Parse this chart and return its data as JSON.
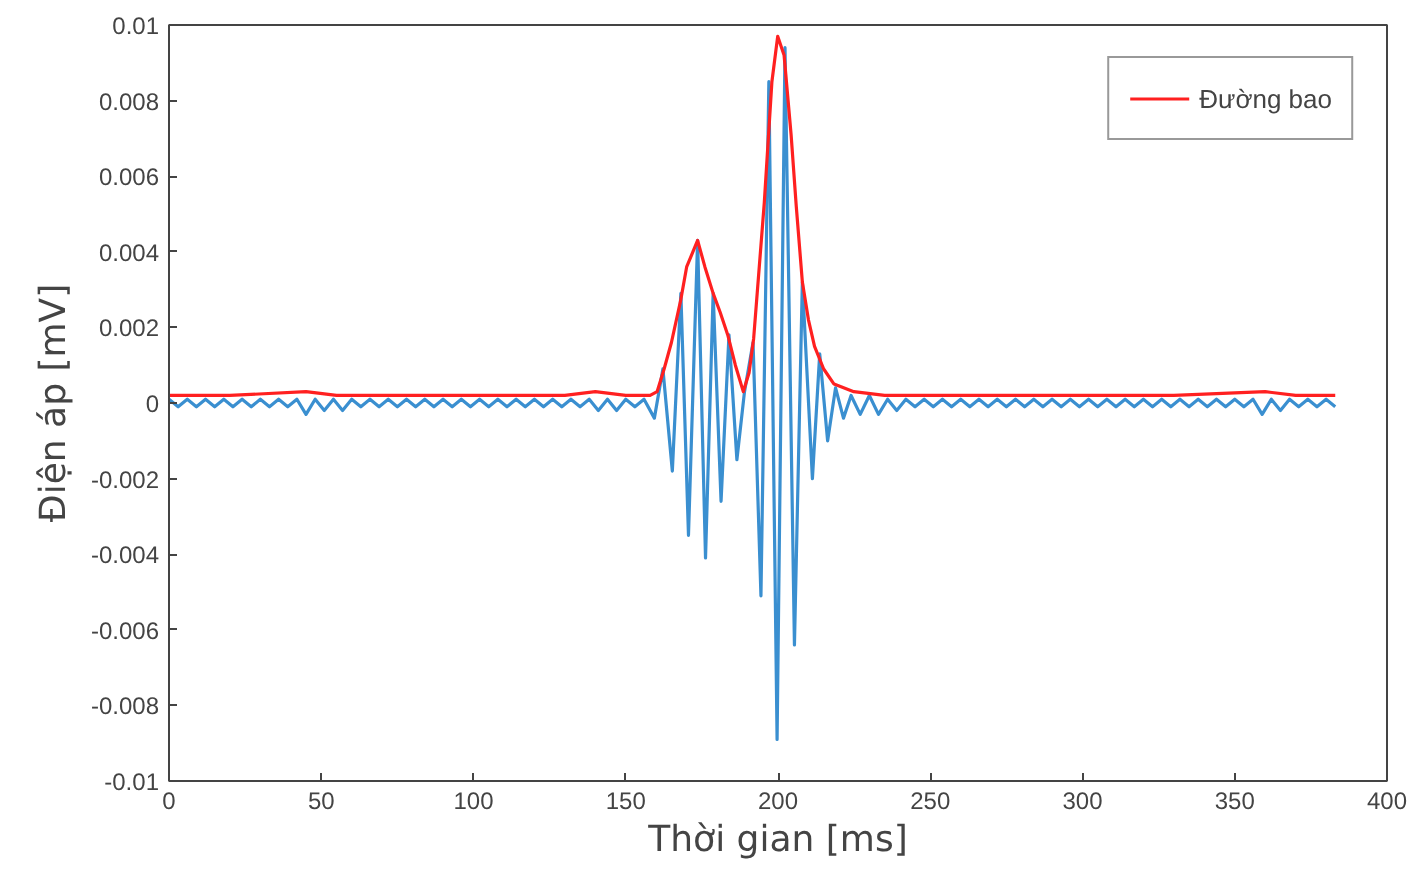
{
  "chart_data": {
    "type": "line",
    "xlabel": "Thời gian [ms]",
    "ylabel": "Điện áp [mV]",
    "xlim": [
      0,
      400
    ],
    "ylim": [
      -0.01,
      0.01
    ],
    "xticks": [
      0,
      50,
      100,
      150,
      200,
      250,
      300,
      350,
      400
    ],
    "yticks": [
      -0.01,
      -0.008,
      -0.006,
      -0.004,
      -0.002,
      0,
      0.002,
      0.004,
      0.006,
      0.008,
      0.01
    ],
    "legend": "top right",
    "grid": false,
    "series": [
      {
        "color": "#3a8fd0",
        "x": [
          0,
          3,
          6,
          9,
          12,
          15,
          18,
          21,
          24,
          27,
          30,
          33,
          36,
          39,
          42,
          45,
          48,
          51,
          54,
          57,
          60,
          63,
          66,
          69,
          72,
          75,
          78,
          81,
          84,
          87,
          90,
          93,
          96,
          99,
          102,
          105,
          108,
          111,
          114,
          117,
          120,
          123,
          126,
          129,
          132,
          135,
          138,
          141,
          144,
          147,
          150,
          153,
          156,
          159.4,
          162.2,
          165.3,
          168.1,
          170.6,
          173.6,
          176.2,
          178.7,
          181.3,
          183.9,
          186.5,
          189.0,
          191.8,
          194.4,
          197.0,
          199.7,
          202.3,
          205.4,
          208.0,
          211.3,
          213.7,
          216.3,
          218.9,
          221.5,
          224,
          227,
          230,
          233,
          236,
          239,
          242,
          245,
          248,
          251,
          254,
          257,
          260,
          263,
          266,
          269,
          272,
          275,
          278,
          281,
          284,
          287,
          290,
          293,
          296,
          299,
          302,
          305,
          308,
          311,
          314,
          317,
          320,
          323,
          326,
          329,
          332,
          335,
          338,
          341,
          344,
          347,
          350,
          353,
          356,
          359,
          362,
          365,
          368,
          371,
          374,
          377,
          380,
          383
        ],
        "values": [
          0.0001,
          -0.0001,
          0.0001,
          -0.0001,
          0.0001,
          -0.0001,
          0.0001,
          -0.0001,
          0.0001,
          -0.0001,
          0.0001,
          -0.0001,
          0.0001,
          -0.0001,
          0.0001,
          -0.0003,
          0.0001,
          -0.0002,
          0.0001,
          -0.0002,
          0.0001,
          -0.0001,
          0.0001,
          -0.0001,
          0.0001,
          -0.0001,
          0.0001,
          -0.0001,
          0.0001,
          -0.0001,
          0.0001,
          -0.0001,
          0.0001,
          -0.0001,
          0.0001,
          -0.0001,
          0.0001,
          -0.0001,
          0.0001,
          -0.0001,
          0.0001,
          -0.0001,
          0.0001,
          -0.0001,
          0.0001,
          -0.0001,
          0.0001,
          -0.0002,
          0.0001,
          -0.0002,
          0.0001,
          -0.0001,
          0.0001,
          -0.0004,
          0.0009,
          -0.0018,
          0.0029,
          -0.0035,
          0.0043,
          -0.0041,
          0.0029,
          -0.0026,
          0.0018,
          -0.0015,
          0.0003,
          0.0016,
          -0.0051,
          0.0085,
          -0.0089,
          0.0094,
          -0.0064,
          0.0032,
          -0.002,
          0.0013,
          -0.001,
          0.0004,
          -0.0004,
          0.0002,
          -0.0003,
          0.0002,
          -0.0003,
          0.0001,
          -0.0002,
          0.0001,
          -0.0001,
          0.0001,
          -0.0001,
          0.0001,
          -0.0001,
          0.0001,
          -0.0001,
          0.0001,
          -0.0001,
          0.0001,
          -0.0001,
          0.0001,
          -0.0001,
          0.0001,
          -0.0001,
          0.0001,
          -0.0001,
          0.0001,
          -0.0001,
          0.0001,
          -0.0001,
          0.0001,
          -0.0001,
          0.0001,
          -0.0001,
          0.0001,
          -0.0001,
          0.0001,
          -0.0001,
          0.0001,
          -0.0001,
          0.0001,
          -0.0001,
          0.0001,
          -0.0001,
          0.0001,
          -0.0001,
          0.0001,
          -0.0003,
          0.0001,
          -0.0002,
          0.0001,
          -0.0001,
          0.0001,
          -0.0001,
          0.0001,
          -0.0001
        ]
      },
      {
        "name": "Đường bao",
        "color": "#ff2020",
        "x": [
          0,
          20,
          45,
          55,
          70,
          100,
          130,
          140,
          150,
          155,
          158,
          160.3,
          162.6,
          165,
          168,
          170,
          173.6,
          176,
          178.7,
          181,
          183.5,
          186,
          188.6,
          190.5,
          192,
          195.5,
          198,
          199.9,
          202,
          204.3,
          206,
          208,
          210,
          212,
          215,
          218.4,
          224.9,
          235,
          260,
          300,
          330,
          360,
          370,
          383
        ],
        "values": [
          0.0002,
          0.0002,
          0.0003,
          0.0002,
          0.0002,
          0.0002,
          0.0002,
          0.0003,
          0.0002,
          0.0002,
          0.0002,
          0.0003,
          0.0009,
          0.0016,
          0.0027,
          0.0036,
          0.0043,
          0.0036,
          0.0029,
          0.0024,
          0.0018,
          0.001,
          0.0003,
          0.0008,
          0.0017,
          0.0053,
          0.0085,
          0.0097,
          0.0092,
          0.0071,
          0.0052,
          0.0032,
          0.0022,
          0.0015,
          0.0009,
          0.0005,
          0.0003,
          0.0002,
          0.0002,
          0.0002,
          0.0002,
          0.0003,
          0.0002,
          0.0002
        ]
      }
    ]
  }
}
